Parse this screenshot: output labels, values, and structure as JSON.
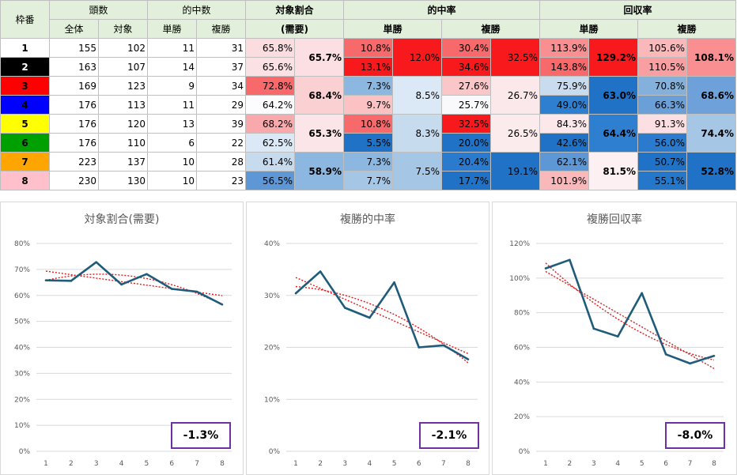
{
  "table": {
    "headers": {
      "gate": "枠番",
      "heads": "頭数",
      "heads_all": "全体",
      "heads_target": "対象",
      "wins": "的中数",
      "wins_tan": "単勝",
      "wins_fuku": "複勝",
      "share": "対象割合",
      "share_sub": "(需要)",
      "hit_rate": "的中率",
      "hit_tan": "単勝",
      "hit_fuku": "複勝",
      "return_rate": "回収率",
      "ret_tan": "単勝",
      "ret_fuku": "複勝"
    },
    "rows": [
      {
        "gate": "1",
        "gate_bg": "#ffffff",
        "gate_fg": "#000000",
        "all": "155",
        "target": "102",
        "tan_w": "11",
        "fuku_w": "31",
        "share": "65.8%",
        "share_bg": "#fbdde0",
        "hit_tan": "10.8%",
        "hit_tan_bg": "#f8696b",
        "hit_fuku": "30.4%",
        "hit_fuku_bg": "#f8696b",
        "ret_tan": "113.9%",
        "ret_tan_bg": "#f98f91",
        "ret_fuku": "105.6%",
        "ret_fuku_bg": "#fbb8ba"
      },
      {
        "gate": "2",
        "gate_bg": "#000000",
        "gate_fg": "#ffffff",
        "all": "163",
        "target": "107",
        "tan_w": "14",
        "fuku_w": "37",
        "share": "65.6%",
        "share_bg": "#fbe1e4",
        "hit_tan": "13.1%",
        "hit_tan_bg": "#f8191c",
        "hit_fuku": "34.6%",
        "hit_fuku_bg": "#f8191c",
        "ret_tan": "143.8%",
        "ret_tan_bg": "#f8696b",
        "ret_fuku": "110.5%",
        "ret_fuku_bg": "#f99fa1"
      },
      {
        "gate": "3",
        "gate_bg": "#ff0000",
        "gate_fg": "#000000",
        "all": "169",
        "target": "123",
        "tan_w": "9",
        "fuku_w": "34",
        "share": "72.8%",
        "share_bg": "#f8696b",
        "hit_tan": "7.3%",
        "hit_tan_bg": "#8cb7e0",
        "hit_fuku": "27.6%",
        "hit_fuku_bg": "#fbc6c8",
        "ret_tan": "75.9%",
        "ret_tan_bg": "#c9dcef",
        "ret_fuku": "70.8%",
        "ret_fuku_bg": "#84b1dc"
      },
      {
        "gate": "4",
        "gate_bg": "#0000ff",
        "gate_fg": "#000000",
        "all": "176",
        "target": "113",
        "tan_w": "11",
        "fuku_w": "29",
        "share": "64.2%",
        "share_bg": "#fcfcff",
        "hit_tan": "9.7%",
        "hit_tan_bg": "#fbc1c3",
        "hit_fuku": "25.7%",
        "hit_fuku_bg": "#f9f9fc",
        "ret_tan": "49.0%",
        "ret_tan_bg": "#2f7fd1",
        "ret_fuku": "66.3%",
        "ret_fuku_bg": "#6a9fd8"
      },
      {
        "gate": "5",
        "gate_bg": "#ffff00",
        "gate_fg": "#000000",
        "all": "176",
        "target": "120",
        "tan_w": "13",
        "fuku_w": "39",
        "share": "68.2%",
        "share_bg": "#f9a9ab",
        "hit_tan": "10.8%",
        "hit_tan_bg": "#f8696b",
        "hit_fuku": "32.5%",
        "hit_fuku_bg": "#f8191c",
        "ret_tan": "84.3%",
        "ret_tan_bg": "#fce8eb",
        "ret_fuku": "91.3%",
        "ret_fuku_bg": "#fcdfe2"
      },
      {
        "gate": "6",
        "gate_bg": "#00a000",
        "gate_fg": "#000000",
        "all": "176",
        "target": "110",
        "tan_w": "6",
        "fuku_w": "22",
        "share": "62.5%",
        "share_bg": "#dbe8f5",
        "hit_tan": "5.5%",
        "hit_tan_bg": "#1f72c6",
        "hit_fuku": "20.0%",
        "hit_fuku_bg": "#1f72c6",
        "ret_tan": "42.6%",
        "ret_tan_bg": "#1f72c6",
        "ret_fuku": "56.0%",
        "ret_fuku_bg": "#2a7bce"
      },
      {
        "gate": "7",
        "gate_bg": "#ffa500",
        "gate_fg": "#000000",
        "all": "223",
        "target": "137",
        "tan_w": "10",
        "fuku_w": "28",
        "share": "61.4%",
        "share_bg": "#c7dbef",
        "hit_tan": "7.3%",
        "hit_tan_bg": "#8cb7e0",
        "hit_fuku": "20.4%",
        "hit_fuku_bg": "#2a7bce",
        "ret_tan": "62.1%",
        "ret_tan_bg": "#5e97d6",
        "ret_fuku": "50.7%",
        "ret_fuku_bg": "#1f72c6"
      },
      {
        "gate": "8",
        "gate_bg": "#ffc0cb",
        "gate_fg": "#000000",
        "all": "230",
        "target": "130",
        "tan_w": "10",
        "fuku_w": "23",
        "share": "56.5%",
        "share_bg": "#5e97d6",
        "hit_tan": "7.7%",
        "hit_tan_bg": "#a6c6e6",
        "hit_fuku": "17.7%",
        "hit_fuku_bg": "#1f72c6",
        "ret_tan": "101.9%",
        "ret_tan_bg": "#fbb8ba",
        "ret_fuku": "55.1%",
        "ret_fuku_bg": "#2577ca"
      }
    ],
    "groups": [
      {
        "share": "65.7%",
        "share_bg": "#fbdfe2",
        "hit_tan": "12.0%",
        "hit_tan_bg": "#f8191c",
        "hit_fuku": "32.5%",
        "hit_fuku_bg": "#f8191c",
        "ret_tan": "129.2%",
        "ret_tan_bg": "#f8191c",
        "ret_fuku": "108.1%",
        "ret_fuku_bg": "#f98f91"
      },
      {
        "share": "68.4%",
        "share_bg": "#fbd0d3",
        "hit_tan": "8.5%",
        "hit_tan_bg": "#dbe8f5",
        "hit_fuku": "26.7%",
        "hit_fuku_bg": "#fbe8ea",
        "ret_tan": "63.0%",
        "ret_tan_bg": "#1f72c6",
        "ret_fuku": "68.6%",
        "ret_fuku_bg": "#6ea1d9"
      },
      {
        "share": "65.3%",
        "share_bg": "#fbe5e8",
        "hit_tan": "8.3%",
        "hit_tan_bg": "#c7dbef",
        "hit_fuku": "26.5%",
        "hit_fuku_bg": "#fbebed",
        "ret_tan": "64.4%",
        "ret_tan_bg": "#2f7fd1",
        "ret_fuku": "74.4%",
        "ret_fuku_bg": "#a6c6e6"
      },
      {
        "share": "58.9%",
        "share_bg": "#8cb7e0",
        "hit_tan": "7.5%",
        "hit_tan_bg": "#a6c6e6",
        "hit_fuku": "19.1%",
        "hit_fuku_bg": "#1f72c6",
        "ret_tan": "81.5%",
        "ret_tan_bg": "#fcf0f2",
        "ret_fuku": "52.8%",
        "ret_fuku_bg": "#1f72c6"
      }
    ]
  },
  "chart_data": [
    {
      "type": "line",
      "title": "対象割合(需要)",
      "x": [
        1,
        2,
        3,
        4,
        5,
        6,
        7,
        8
      ],
      "series": [
        {
          "values": [
            65.8,
            65.6,
            72.8,
            64.2,
            68.2,
            62.5,
            61.4,
            56.5
          ]
        }
      ],
      "trendlines": [
        "linear",
        "polynomial"
      ],
      "ylim": [
        0,
        80
      ],
      "yticks": [
        "0%",
        "10%",
        "20%",
        "30%",
        "40%",
        "50%",
        "60%",
        "70%",
        "80%"
      ],
      "grid": true,
      "annotation": "-1.3%",
      "line_color": "#1f5c7a",
      "trend_color": "#e31a1c"
    },
    {
      "type": "line",
      "title": "複勝的中率",
      "x": [
        1,
        2,
        3,
        4,
        5,
        6,
        7,
        8
      ],
      "series": [
        {
          "values": [
            30.4,
            34.6,
            27.6,
            25.7,
            32.5,
            20.0,
            20.4,
            17.7
          ]
        }
      ],
      "trendlines": [
        "linear",
        "polynomial"
      ],
      "ylim": [
        0,
        40
      ],
      "yticks": [
        "0%",
        "10%",
        "20%",
        "30%",
        "40%"
      ],
      "grid": true,
      "annotation": "-2.1%",
      "line_color": "#1f5c7a",
      "trend_color": "#e31a1c"
    },
    {
      "type": "line",
      "title": "複勝回収率",
      "x": [
        1,
        2,
        3,
        4,
        5,
        6,
        7,
        8
      ],
      "series": [
        {
          "values": [
            105.6,
            110.5,
            70.8,
            66.3,
            91.3,
            56.0,
            50.7,
            55.1
          ]
        }
      ],
      "trendlines": [
        "linear",
        "polynomial"
      ],
      "ylim": [
        0,
        120
      ],
      "yticks": [
        "0%",
        "20%",
        "40%",
        "60%",
        "80%",
        "100%",
        "120%"
      ],
      "grid": true,
      "annotation": "-8.0%",
      "line_color": "#1f5c7a",
      "trend_color": "#e31a1c"
    }
  ]
}
